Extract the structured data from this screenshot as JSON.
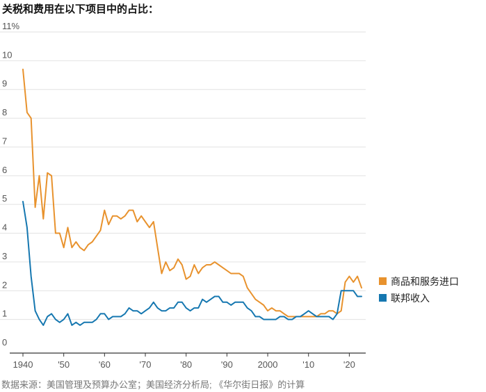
{
  "title": "关税和费用在以下项目中的占比：",
  "source": "数据来源：美国管理及预算办公室；美国经济分析局; 《华尔街日报》的计算",
  "chart_data": {
    "type": "line",
    "title": "关税和费用在以下项目中的占比：",
    "xlim": [
      1940,
      2023
    ],
    "ylim": [
      0,
      11
    ],
    "grid": true,
    "legend_position": "right",
    "x_tick_values": [
      1940,
      1950,
      1960,
      1970,
      1980,
      1990,
      2000,
      2010,
      2020
    ],
    "x_tick_labels": [
      "1940",
      "'50",
      "'60",
      "'70",
      "'80",
      "'90",
      "2000",
      "'10",
      "'20"
    ],
    "y_tick_values": [
      0,
      1,
      2,
      3,
      4,
      5,
      6,
      7,
      8,
      9,
      10,
      11
    ],
    "y_tick_labels": [
      "0",
      "1",
      "2",
      "3",
      "4",
      "5",
      "6",
      "7",
      "8",
      "9",
      "10",
      "11%"
    ],
    "series": [
      {
        "name": "商品和服务进口",
        "color": "#e8922d",
        "x": [
          1940,
          1941,
          1942,
          1943,
          1944,
          1945,
          1946,
          1947,
          1948,
          1949,
          1950,
          1951,
          1952,
          1953,
          1954,
          1955,
          1956,
          1957,
          1958,
          1959,
          1960,
          1961,
          1962,
          1963,
          1964,
          1965,
          1966,
          1967,
          1968,
          1969,
          1970,
          1971,
          1972,
          1973,
          1974,
          1975,
          1976,
          1977,
          1978,
          1979,
          1980,
          1981,
          1982,
          1983,
          1984,
          1985,
          1986,
          1987,
          1988,
          1989,
          1990,
          1991,
          1992,
          1993,
          1994,
          1995,
          1996,
          1997,
          1998,
          1999,
          2000,
          2001,
          2002,
          2003,
          2004,
          2005,
          2006,
          2007,
          2008,
          2009,
          2010,
          2011,
          2012,
          2013,
          2014,
          2015,
          2016,
          2017,
          2018,
          2019,
          2020,
          2021,
          2022,
          2023
        ],
        "values": [
          9.7,
          8.2,
          8.0,
          4.9,
          6.0,
          4.5,
          6.1,
          6.0,
          4.0,
          4.0,
          3.5,
          4.2,
          3.5,
          3.7,
          3.5,
          3.4,
          3.6,
          3.7,
          3.9,
          4.1,
          4.8,
          4.3,
          4.6,
          4.6,
          4.5,
          4.6,
          4.8,
          4.8,
          4.4,
          4.6,
          4.4,
          4.2,
          4.4,
          3.5,
          2.6,
          3.0,
          2.7,
          2.8,
          3.1,
          2.9,
          2.4,
          2.5,
          2.9,
          2.6,
          2.8,
          2.9,
          2.9,
          3.0,
          2.9,
          2.8,
          2.7,
          2.6,
          2.6,
          2.6,
          2.5,
          2.1,
          1.9,
          1.7,
          1.6,
          1.5,
          1.3,
          1.4,
          1.3,
          1.3,
          1.2,
          1.1,
          1.1,
          1.1,
          1.1,
          1.1,
          1.1,
          1.1,
          1.1,
          1.2,
          1.2,
          1.3,
          1.3,
          1.2,
          1.3,
          2.3,
          2.5,
          2.3,
          2.5,
          2.1
        ]
      },
      {
        "name": "联邦收入",
        "color": "#1577b0",
        "x": [
          1940,
          1941,
          1942,
          1943,
          1944,
          1945,
          1946,
          1947,
          1948,
          1949,
          1950,
          1951,
          1952,
          1953,
          1954,
          1955,
          1956,
          1957,
          1958,
          1959,
          1960,
          1961,
          1962,
          1963,
          1964,
          1965,
          1966,
          1967,
          1968,
          1969,
          1970,
          1971,
          1972,
          1973,
          1974,
          1975,
          1976,
          1977,
          1978,
          1979,
          1980,
          1981,
          1982,
          1983,
          1984,
          1985,
          1986,
          1987,
          1988,
          1989,
          1990,
          1991,
          1992,
          1993,
          1994,
          1995,
          1996,
          1997,
          1998,
          1999,
          2000,
          2001,
          2002,
          2003,
          2004,
          2005,
          2006,
          2007,
          2008,
          2009,
          2010,
          2011,
          2012,
          2013,
          2014,
          2015,
          2016,
          2017,
          2018,
          2019,
          2020,
          2021,
          2022,
          2023
        ],
        "values": [
          5.1,
          4.2,
          2.5,
          1.3,
          1.0,
          0.8,
          1.1,
          1.2,
          1.0,
          0.9,
          1.0,
          1.2,
          0.8,
          0.9,
          0.8,
          0.9,
          0.9,
          0.9,
          1.0,
          1.2,
          1.2,
          1.0,
          1.1,
          1.1,
          1.1,
          1.2,
          1.4,
          1.3,
          1.3,
          1.2,
          1.3,
          1.4,
          1.6,
          1.4,
          1.3,
          1.3,
          1.4,
          1.4,
          1.6,
          1.6,
          1.4,
          1.3,
          1.4,
          1.4,
          1.7,
          1.6,
          1.7,
          1.8,
          1.8,
          1.6,
          1.6,
          1.5,
          1.6,
          1.6,
          1.6,
          1.4,
          1.3,
          1.1,
          1.1,
          1.0,
          1.0,
          1.0,
          1.0,
          1.1,
          1.1,
          1.0,
          1.0,
          1.1,
          1.1,
          1.2,
          1.3,
          1.2,
          1.1,
          1.1,
          1.1,
          1.1,
          1.0,
          1.2,
          2.0,
          2.0,
          2.0,
          2.0,
          1.8,
          1.8
        ]
      }
    ]
  }
}
